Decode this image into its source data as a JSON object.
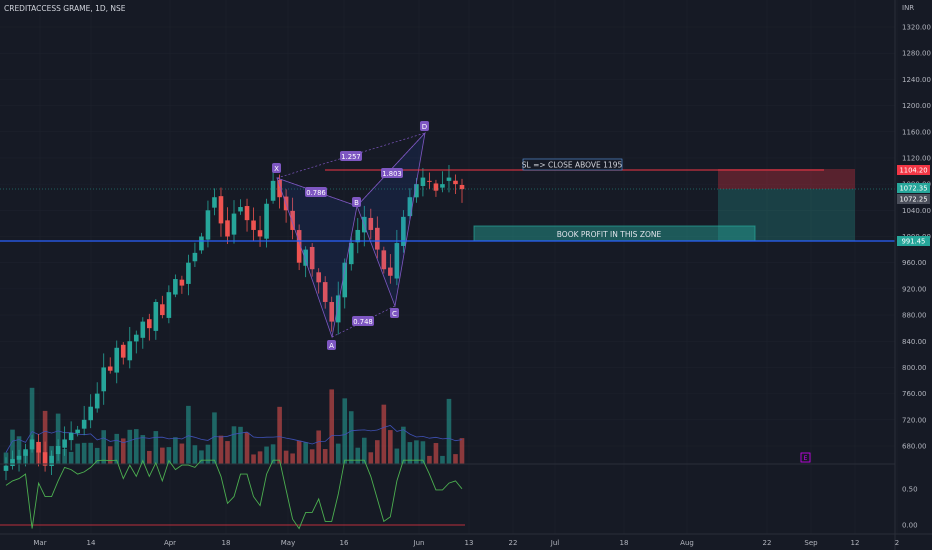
{
  "header": {
    "symbol_title": "CREDITACCESS GRAME, 1D, NSE",
    "currency": "INR"
  },
  "colors": {
    "bg": "#161a25",
    "up": "#26a69a",
    "down": "#ef5350",
    "sl_line": "#f23645",
    "support_line": "#2962ff",
    "pattern": "#7e57c2",
    "rsi": "#4caf50"
  },
  "price_axis": {
    "ticks": [
      "1320.00",
      "1280.00",
      "1240.00",
      "1200.00",
      "1160.00",
      "1120.00",
      "1080.00",
      "1040.00",
      "1000.00",
      "960.00",
      "920.00",
      "880.00",
      "840.00",
      "800.00",
      "760.00",
      "720.00",
      "680.00"
    ],
    "badges": {
      "sl_price": "1104.20",
      "last_price": "1072.35",
      "prev_price": "1072.25",
      "support_price": "991.45"
    }
  },
  "rsi_axis": {
    "ticks": [
      "0.50",
      "0.00"
    ]
  },
  "time_axis": {
    "labels": [
      "Mar",
      "14",
      "Apr",
      "18",
      "May",
      "16",
      "Jun",
      "13",
      "22",
      "Jul",
      "18",
      "Aug",
      "22",
      "Sep",
      "12",
      "2"
    ]
  },
  "annotations": {
    "sl_text": "SL => CLOSE ABOVE 1195",
    "target_text": "BOOK PROFIT IN THIS ZONE",
    "pattern_points": [
      "X",
      "A",
      "B",
      "C",
      "D"
    ],
    "ratios": [
      "0.786",
      "1.257",
      "0.748",
      "1.803"
    ],
    "event_marker": "E"
  },
  "chart_data": {
    "type": "candlestick",
    "title": "CREDITACCESS GRAME, 1D, NSE",
    "ylabel": "INR",
    "ylim": [
      640,
      1340
    ],
    "levels": {
      "stop_loss": 1104.2,
      "support": 991.45,
      "last": 1072.35
    },
    "harmonic_pattern": {
      "X": 1094,
      "A": 850,
      "B": 1045,
      "C": 896,
      "D": 1152
    },
    "series": [
      {
        "name": "price",
        "values": [
          650,
          660,
          665,
          675,
          690,
          670,
          650,
          665,
          680,
          690,
          700,
          705,
          720,
          740,
          760,
          800,
          795,
          830,
          815,
          840,
          850,
          870,
          860,
          900,
          880,
          915,
          935,
          925,
          960,
          975,
          1000,
          1040,
          1060,
          1020,
          1000,
          1035,
          1045,
          1025,
          1010,
          1000,
          1050,
          1085,
          1060,
          1040,
          1010,
          960,
          980,
          950,
          930,
          900,
          870,
          910,
          960,
          990,
          1010,
          1030,
          1010,
          980,
          950,
          940,
          990,
          1030,
          1060,
          1080,
          1090,
          1085,
          1070,
          1080,
          1090,
          1080,
          1072.35
        ]
      }
    ]
  }
}
